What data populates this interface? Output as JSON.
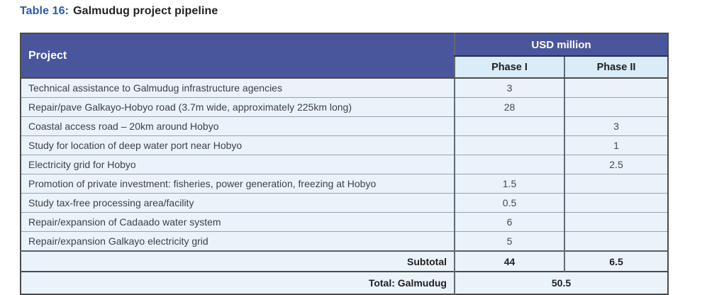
{
  "title": {
    "prefix": "Table 16:",
    "text": "Galmudug project pipeline"
  },
  "table": {
    "header": {
      "project": "Project",
      "unit_group": "USD million",
      "phase1": "Phase I",
      "phase2": "Phase II"
    },
    "rows": [
      {
        "project": "Technical assistance to Galmudug infrastructure agencies",
        "phase1": "3",
        "phase2": ""
      },
      {
        "project": "Repair/pave Galkayo-Hobyo road (3.7m wide, approximately 225km long)",
        "phase1": "28",
        "phase2": ""
      },
      {
        "project": "Coastal access road – 20km around Hobyo",
        "phase1": "",
        "phase2": "3"
      },
      {
        "project": "Study for location of deep water port near Hobyo",
        "phase1": "",
        "phase2": "1"
      },
      {
        "project": "Electricity grid for Hobyo",
        "phase1": "",
        "phase2": "2.5"
      },
      {
        "project": "Promotion of private investment: fisheries, power generation, freezing at Hobyo",
        "phase1": "1.5",
        "phase2": ""
      },
      {
        "project": "Study tax-free processing area/facility",
        "phase1": "0.5",
        "phase2": ""
      },
      {
        "project": "Repair/expansion of Cadaado water system",
        "phase1": "6",
        "phase2": ""
      },
      {
        "project": "Repair/expansion Galkayo electricity grid",
        "phase1": "5",
        "phase2": ""
      }
    ],
    "subtotal": {
      "label": "Subtotal",
      "phase1": "44",
      "phase2": "6.5"
    },
    "total": {
      "label": "Total: Galmudug",
      "value": "50.5"
    }
  },
  "colors": {
    "header_blue": "#4a569c",
    "phase_header_bg": "#d9ecf7",
    "row_bg": "#ebf3fa",
    "title_blue": "#2b5aa8",
    "title_dark": "#231f20",
    "grid_line": "#99a3ab",
    "heavy_line": "#4b4b4b"
  }
}
